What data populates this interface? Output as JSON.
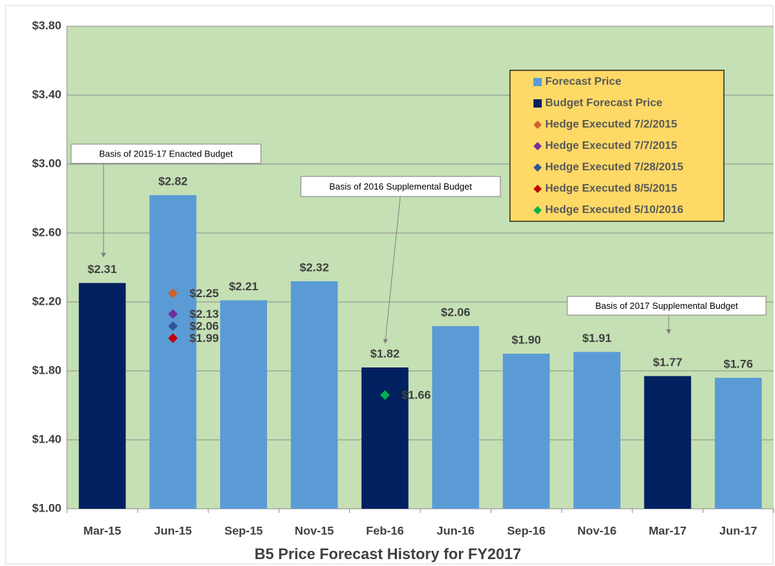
{
  "chart_data": {
    "type": "bar",
    "title": "B5 Price Forecast History for FY2017",
    "categories": [
      "Mar-15",
      "Jun-15",
      "Sep-15",
      "Nov-15",
      "Feb-16",
      "Jun-16",
      "Sep-16",
      "Nov-16",
      "Mar-17",
      "Jun-17"
    ],
    "series": [
      {
        "name": "Forecast Price",
        "type": "bar",
        "color": "#5b9bd5",
        "values": [
          null,
          2.82,
          2.21,
          2.32,
          null,
          2.06,
          1.9,
          1.91,
          null,
          1.76
        ],
        "value_labels": [
          null,
          "$2.82",
          "$2.21",
          "$2.32",
          null,
          "$2.06",
          "$1.90",
          "$1.91",
          null,
          "$1.76"
        ]
      },
      {
        "name": "Budget Forecast Price",
        "type": "bar",
        "color": "#002060",
        "values": [
          2.31,
          null,
          null,
          null,
          1.82,
          null,
          null,
          null,
          1.77,
          null
        ],
        "value_labels": [
          "$2.31",
          null,
          null,
          null,
          "$1.82",
          null,
          null,
          null,
          "$1.77",
          null
        ]
      },
      {
        "name": "Hedge Executed 7/2/2015",
        "type": "scatter",
        "color": "#d0612b",
        "values": [
          null,
          2.25,
          null,
          null,
          null,
          null,
          null,
          null,
          null,
          null
        ],
        "value_labels": [
          null,
          "$2.25",
          null,
          null,
          null,
          null,
          null,
          null,
          null,
          null
        ]
      },
      {
        "name": "Hedge Executed 7/7/2015",
        "type": "scatter",
        "color": "#7030a0",
        "values": [
          null,
          2.13,
          null,
          null,
          null,
          null,
          null,
          null,
          null,
          null
        ],
        "value_labels": [
          null,
          "$2.13",
          null,
          null,
          null,
          null,
          null,
          null,
          null,
          null
        ]
      },
      {
        "name": "Hedge Executed 7/28/2015",
        "type": "scatter",
        "color": "#2f5597",
        "values": [
          null,
          2.06,
          null,
          null,
          null,
          null,
          null,
          null,
          null,
          null
        ],
        "value_labels": [
          null,
          "$2.06",
          null,
          null,
          null,
          null,
          null,
          null,
          null,
          null
        ]
      },
      {
        "name": "Hedge Executed 8/5/2015",
        "type": "scatter",
        "color": "#c00000",
        "values": [
          null,
          1.99,
          null,
          null,
          null,
          null,
          null,
          null,
          null,
          null
        ],
        "value_labels": [
          null,
          "$1.99",
          null,
          null,
          null,
          null,
          null,
          null,
          null,
          null
        ]
      },
      {
        "name": "Hedge Executed 5/10/2016",
        "type": "scatter",
        "color": "#00b050",
        "values": [
          null,
          null,
          null,
          null,
          1.66,
          null,
          null,
          null,
          null,
          null
        ],
        "value_labels": [
          null,
          null,
          null,
          null,
          "$1.66",
          null,
          null,
          null,
          null,
          null
        ]
      }
    ],
    "ylim": [
      1.0,
      3.8
    ],
    "yticks": [
      {
        "value": 1.0,
        "label": "$1.00"
      },
      {
        "value": 1.4,
        "label": "$1.40"
      },
      {
        "value": 1.8,
        "label": "$1.80"
      },
      {
        "value": 2.2,
        "label": "$2.20"
      },
      {
        "value": 2.6,
        "label": "$2.60"
      },
      {
        "value": 3.0,
        "label": "$3.00"
      },
      {
        "value": 3.4,
        "label": "$3.40"
      },
      {
        "value": 3.8,
        "label": "$3.80"
      }
    ],
    "grid": true,
    "legend": "upper right",
    "annotations": [
      "Basis of 2015-17 Enacted  Budget",
      "Basis of 2016 Supplemental Budget",
      "Basis of 2017 Supplemental Budget"
    ]
  }
}
